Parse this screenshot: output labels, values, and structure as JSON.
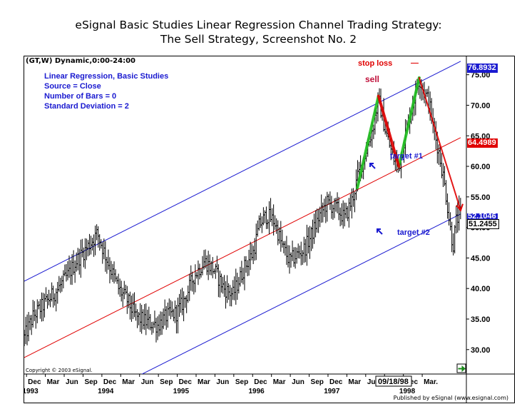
{
  "page": {
    "title_line1": "eSignal Basic Studies Linear Regression Channel Trading Strategy:",
    "title_line2": "The Sell Strategy, Screenshot No. 2",
    "symbol_header": "(GT,W) Dynamic,0:00-24:00",
    "copyright": "Copyright © 2003 eSignal.",
    "publisher": "Published by eSignal (www.esignal.com)",
    "cursor_date": "09/18/98"
  },
  "study_info": [
    "Linear Regression, Basic Studies",
    "Source = Close",
    "Number of Bars = 0",
    "Standard Deviation = 2"
  ],
  "annotations": {
    "stop_loss": "stop loss",
    "sell": "sell",
    "target1": "target #1",
    "target2": "target #2"
  },
  "price_labels": {
    "upper": "76.8932",
    "middle": "64.4989",
    "lower": "52.1046",
    "last": "51.2455"
  },
  "colors": {
    "upper_channel": "#1a1ad0",
    "regression_line": "#e00000",
    "lower_channel": "#1a1ad0",
    "up_swing": "#1fbf1f",
    "down_swing": "#e00000",
    "stop_loss": "#e00000",
    "annotation_blue": "#1a1ad0",
    "scroll_icon": "#1a8a1a"
  },
  "chart_data": {
    "type": "ohlc",
    "interval": "weekly",
    "title": "",
    "ylim": [
      26,
      78
    ],
    "y_ticks": [
      "30.00",
      "35.00",
      "40.00",
      "45.00",
      "50.00",
      "55.00",
      "60.00",
      "65.00",
      "70.00",
      "75.00"
    ],
    "x_start": 1992.93,
    "x_end": 1998.72,
    "x_month_labels": [
      "Dec",
      "Mar",
      "Jun",
      "Sep",
      "Dec",
      "Mar",
      "Jun",
      "Sep",
      "Dec",
      "Mar",
      "Jun",
      "Sep",
      "Dec",
      "Mar",
      "Jun",
      "Sep",
      "Dec",
      "Mar",
      "Jun",
      "Sep",
      "Dec",
      "Mar."
    ],
    "x_year_labels": [
      "1993",
      "1994",
      "1995",
      "1996",
      "1997",
      "1998"
    ],
    "price_keypoints": [
      [
        1992.93,
        32.0
      ],
      [
        1993.05,
        35.5
      ],
      [
        1993.2,
        37.5
      ],
      [
        1993.35,
        39.5
      ],
      [
        1993.5,
        42.0
      ],
      [
        1993.62,
        44.5
      ],
      [
        1993.75,
        46.5
      ],
      [
        1993.9,
        49.0
      ],
      [
        1994.05,
        44.0
      ],
      [
        1994.18,
        40.0
      ],
      [
        1994.3,
        38.0
      ],
      [
        1994.4,
        35.5
      ],
      [
        1994.55,
        34.5
      ],
      [
        1994.7,
        34.0
      ],
      [
        1994.82,
        35.5
      ],
      [
        1994.95,
        36.0
      ],
      [
        1995.05,
        38.0
      ],
      [
        1995.18,
        42.0
      ],
      [
        1995.32,
        44.5
      ],
      [
        1995.45,
        43.0
      ],
      [
        1995.58,
        40.0
      ],
      [
        1995.7,
        39.0
      ],
      [
        1995.85,
        43.5
      ],
      [
        1995.97,
        46.0
      ],
      [
        1996.05,
        50.5
      ],
      [
        1996.15,
        52.0
      ],
      [
        1996.25,
        51.0
      ],
      [
        1996.35,
        47.0
      ],
      [
        1996.45,
        44.5
      ],
      [
        1996.55,
        45.5
      ],
      [
        1996.65,
        46.5
      ],
      [
        1996.75,
        49.0
      ],
      [
        1996.85,
        52.0
      ],
      [
        1996.95,
        54.0
      ],
      [
        1997.08,
        53.0
      ],
      [
        1997.18,
        51.5
      ],
      [
        1997.28,
        54.5
      ],
      [
        1997.35,
        58.0
      ],
      [
        1997.45,
        62.0
      ],
      [
        1997.55,
        66.0
      ],
      [
        1997.63,
        71.0
      ],
      [
        1997.72,
        66.0
      ],
      [
        1997.82,
        61.5
      ],
      [
        1997.9,
        60.0
      ],
      [
        1998.0,
        66.0
      ],
      [
        1998.08,
        70.0
      ],
      [
        1998.17,
        74.5
      ],
      [
        1998.24,
        72.0
      ],
      [
        1998.3,
        70.5
      ],
      [
        1998.36,
        66.0
      ],
      [
        1998.42,
        63.0
      ],
      [
        1998.48,
        59.0
      ],
      [
        1998.53,
        55.0
      ],
      [
        1998.58,
        50.0
      ],
      [
        1998.62,
        47.0
      ],
      [
        1998.66,
        51.0
      ],
      [
        1998.7,
        52.0
      ]
    ],
    "regression_channel": {
      "upper": [
        [
          1992.93,
          41.2
        ],
        [
          1998.72,
          77.2
        ]
      ],
      "middle": [
        [
          1992.93,
          28.7
        ],
        [
          1998.72,
          64.7
        ]
      ],
      "lower": [
        [
          1992.93,
          16.3
        ],
        [
          1998.72,
          52.2
        ]
      ]
    },
    "swings": {
      "up": [
        [
          [
            1997.35,
            56.5
          ],
          [
            1997.63,
            71.5
          ]
        ],
        [
          [
            1997.9,
            60.0
          ],
          [
            1998.17,
            74.5
          ]
        ]
      ],
      "down": [
        [
          [
            1997.63,
            71.5
          ],
          [
            1997.9,
            60.0
          ]
        ],
        [
          [
            1998.17,
            74.5
          ],
          [
            1998.72,
            52.8
          ]
        ]
      ]
    },
    "stop_loss_level": 76.8932,
    "stop_loss_range": [
      1998.16,
      1998.9
    ]
  }
}
